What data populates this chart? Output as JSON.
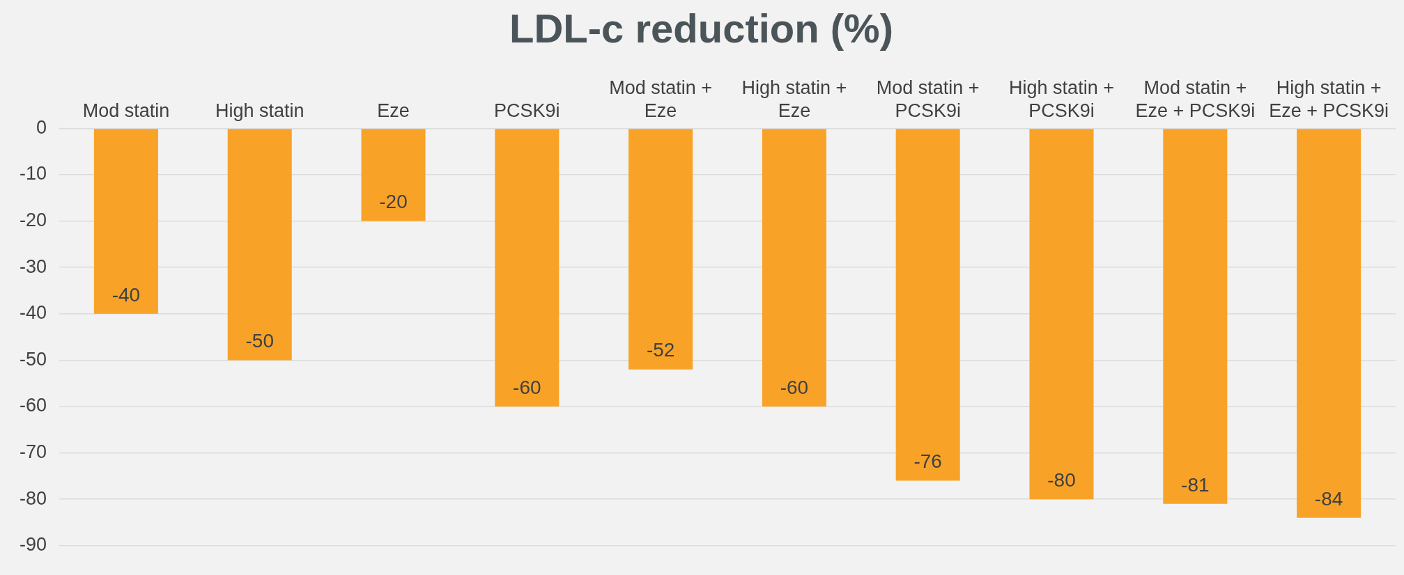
{
  "chart_data": {
    "type": "bar",
    "title": "LDL-c reduction (%)",
    "categories": [
      "Mod statin",
      "High statin",
      "Eze",
      "PCSK9i",
      "Mod statin + Eze",
      "High statin + Eze",
      "Mod statin + PCSK9i",
      "High statin + PCSK9i",
      "Mod statin + Eze + PCSK9i",
      "High statin + Eze + PCSK9i"
    ],
    "values": [
      -40,
      -50,
      -20,
      -60,
      -52,
      -60,
      -76,
      -80,
      -81,
      -84
    ],
    "color": "#f8a328",
    "ylim": [
      -90,
      0
    ],
    "yticks": [
      0,
      -10,
      -20,
      -30,
      -40,
      -50,
      -60,
      -70,
      -80,
      -90
    ],
    "grid": "y",
    "data_labels": true
  }
}
